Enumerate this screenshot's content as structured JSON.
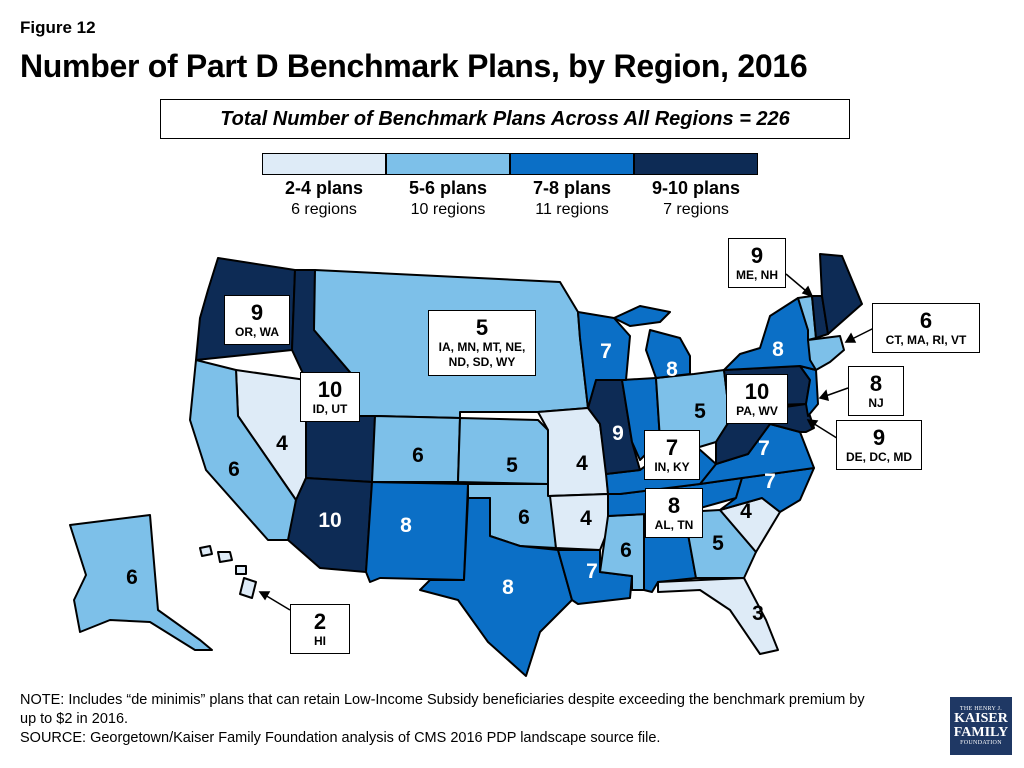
{
  "figure_label": "Figure 12",
  "title": "Number of Part D Benchmark Plans, by Region, 2016",
  "total_banner": "Total Number of Benchmark Plans Across All Regions = 226",
  "colors": {
    "c1": "#deebf7",
    "c2": "#7dc0e9",
    "c3": "#0b6fc6",
    "c4": "#0d2b55"
  },
  "legend": [
    {
      "label": "2-4 plans",
      "sub": "6 regions",
      "color": "#deebf7"
    },
    {
      "label": "5-6 plans",
      "sub": "10 regions",
      "color": "#7dc0e9"
    },
    {
      "label": "7-8 plans",
      "sub": "11 regions",
      "color": "#0b6fc6"
    },
    {
      "label": "9-10 plans",
      "sub": "7 regions",
      "color": "#0d2b55"
    }
  ],
  "map_labels": {
    "or_wa": "9",
    "id_ut": "10",
    "nv": "4",
    "ca": "6",
    "az": "10",
    "nm": "8",
    "co": "6",
    "ks": "5",
    "ok": "6",
    "tx": "8",
    "mo": "4",
    "ar": "4",
    "la": "7",
    "ms": "6",
    "al_tn": "8",
    "ga": "5",
    "fl": "3",
    "sc": "4",
    "nc": "7",
    "va": "7",
    "in_ky": "7",
    "il": "9",
    "wi": "7",
    "mi": "8",
    "oh": "5",
    "pa_wv": "10",
    "ny": "8",
    "ak": "6",
    "north": "5"
  },
  "callouts": {
    "me_nh": {
      "value": "9",
      "states": "ME, NH"
    },
    "or_wa": {
      "value": "9",
      "states": "OR, WA"
    },
    "north": {
      "value": "5",
      "states_line1": "IA, MN, MT, NE,",
      "states_line2": "ND, SD, WY"
    },
    "ct_ma": {
      "value": "6",
      "states": "CT, MA, RI, VT"
    },
    "id_ut": {
      "value": "10",
      "states": "ID, UT"
    },
    "nj": {
      "value": "8",
      "states": "NJ"
    },
    "pa_wv": {
      "value": "10",
      "states": "PA, WV"
    },
    "in_ky": {
      "value": "7",
      "states": "IN, KY"
    },
    "de_dc": {
      "value": "9",
      "states": "DE, DC, MD"
    },
    "al_tn": {
      "value": "8",
      "states": "AL, TN"
    },
    "hi": {
      "value": "2",
      "states": "HI"
    }
  },
  "note_line1": "NOTE: Includes “de minimis” plans that can retain Low-Income Subsidy beneficiaries despite exceeding the benchmark premium by",
  "note_line2": "up to $2 in 2016.",
  "source": "SOURCE: Georgetown/Kaiser Family Foundation analysis of CMS 2016 PDP landscape source file.",
  "logo": {
    "line1": "THE HENRY J.",
    "line2": "KAISER",
    "line3": "FAMILY",
    "line4": "FOUNDATION"
  }
}
